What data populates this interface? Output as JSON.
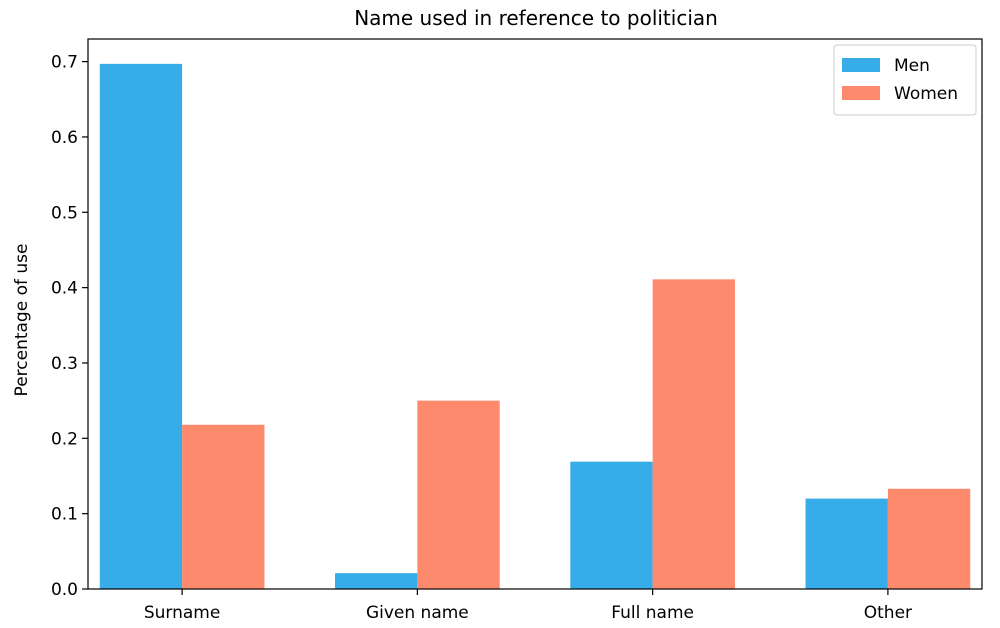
{
  "chart_data": {
    "type": "bar",
    "title": "Name used in reference to politician",
    "xlabel": "",
    "ylabel": "Percentage of use",
    "categories": [
      "Surname",
      "Given name",
      "Full name",
      "Other"
    ],
    "series": [
      {
        "name": "Men",
        "color": "#36ace8",
        "values": [
          0.697,
          0.021,
          0.169,
          0.12
        ]
      },
      {
        "name": "Women",
        "color": "#fe8a6e",
        "values": [
          0.218,
          0.25,
          0.411,
          0.133
        ]
      }
    ],
    "ylim": [
      0,
      0.73
    ],
    "yticks": [
      "0.0",
      "0.1",
      "0.2",
      "0.3",
      "0.4",
      "0.5",
      "0.6",
      "0.7"
    ],
    "grid": false,
    "legend_position": "top-right"
  }
}
